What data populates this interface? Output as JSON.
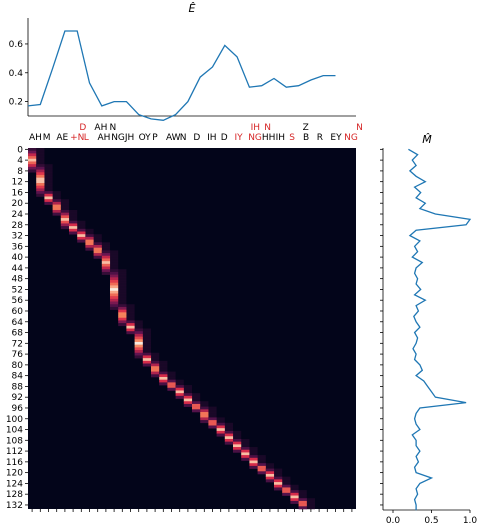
{
  "figure": {
    "top_title": "Ê",
    "right_title": "M̂"
  },
  "colors": {
    "line": "#1f77b4",
    "phoneme_black": "#000000",
    "phoneme_red": "#d62728",
    "heat_low": "#03051a",
    "heat_high": "#faebdd"
  },
  "chart_data": [
    {
      "type": "line",
      "title": "Ê",
      "xlim": [
        0,
        40
      ],
      "ylim": [
        0.1,
        0.78
      ],
      "y_ticks": [
        0.2,
        0.4,
        0.6
      ],
      "y_tick_labels": [
        "0.2",
        "0.4",
        "0.6"
      ],
      "x": [
        0,
        1.5,
        3,
        4.5,
        6,
        7.5,
        9,
        10.5,
        12,
        13.5,
        15,
        16.5,
        18,
        19.5,
        21,
        22.5,
        24,
        25.5,
        27,
        28.5,
        30,
        31.5,
        33,
        34.5,
        36,
        37.5
      ],
      "values": [
        0.17,
        0.18,
        0.43,
        0.69,
        0.69,
        0.33,
        0.17,
        0.2,
        0.2,
        0.11,
        0.08,
        0.07,
        0.11,
        0.2,
        0.37,
        0.44,
        0.59,
        0.51,
        0.3,
        0.31,
        0.36,
        0.3,
        0.31,
        0.35,
        0.38,
        0.38
      ]
    },
    {
      "type": "heatmap",
      "x_phonemes_top": [
        {
          "label": "AH",
          "color": "black"
        },
        {
          "label": "M",
          "color": "black"
        },
        {
          "label": "AE",
          "color": "black"
        },
        {
          "label": "+N",
          "color": "red"
        },
        {
          "label": "L",
          "color": "red"
        },
        {
          "label": "AH",
          "color": "black"
        },
        {
          "label": "NG",
          "color": "black"
        },
        {
          "label": "JH",
          "color": "black"
        },
        {
          "label": "OY",
          "color": "black"
        },
        {
          "label": "P",
          "color": "black"
        },
        {
          "label": "AW",
          "color": "black"
        },
        {
          "label": "N",
          "color": "black"
        },
        {
          "label": "D",
          "color": "black"
        },
        {
          "label": "IH",
          "color": "black"
        },
        {
          "label": "D",
          "color": "black"
        },
        {
          "label": "IY",
          "color": "red"
        },
        {
          "label": "NG",
          "color": "red"
        },
        {
          "label": "HH",
          "color": "black"
        },
        {
          "label": "IH",
          "color": "black"
        },
        {
          "label": "S",
          "color": "red"
        },
        {
          "label": "B",
          "color": "black"
        },
        {
          "label": "R",
          "color": "black"
        },
        {
          "label": "EY",
          "color": "black"
        },
        {
          "label": "NG",
          "color": "red"
        }
      ],
      "x_phonemes_bottom": [
        {
          "label": "D",
          "color": "red"
        },
        {
          "label": "AH",
          "color": "black"
        },
        {
          "label": "N",
          "color": "black"
        },
        {
          "label": "IH",
          "color": "red"
        },
        {
          "label": "N",
          "color": "red"
        },
        {
          "label": "Z",
          "color": "black"
        },
        {
          "label": "N",
          "color": "red"
        }
      ],
      "y_ticks": [
        0,
        4,
        8,
        12,
        16,
        20,
        24,
        28,
        32,
        36,
        40,
        44,
        48,
        52,
        56,
        60,
        64,
        68,
        72,
        76,
        80,
        84,
        88,
        92,
        96,
        100,
        104,
        108,
        112,
        116,
        120,
        124,
        128,
        132
      ],
      "y_tick_labels": [
        "0",
        "4",
        "8",
        "12",
        "16",
        "20",
        "24",
        "28",
        "32",
        "36",
        "40",
        "44",
        "48",
        "52",
        "56",
        "60",
        "64",
        "68",
        "72",
        "76",
        "80",
        "84",
        "88",
        "92",
        "96",
        "100",
        "104",
        "108",
        "112",
        "116",
        "120",
        "124",
        "128",
        "132"
      ],
      "n_rows": 134,
      "n_cols": 40,
      "alignment_path": [
        {
          "col": 0,
          "start": 0,
          "end": 8
        },
        {
          "col": 1,
          "start": 6,
          "end": 17
        },
        {
          "col": 2,
          "start": 16,
          "end": 20
        },
        {
          "col": 3,
          "start": 19,
          "end": 24
        },
        {
          "col": 4,
          "start": 23,
          "end": 29
        },
        {
          "col": 5,
          "start": 27,
          "end": 31
        },
        {
          "col": 6,
          "start": 30,
          "end": 34
        },
        {
          "col": 7,
          "start": 32,
          "end": 37
        },
        {
          "col": 8,
          "start": 35,
          "end": 40
        },
        {
          "col": 9,
          "start": 38,
          "end": 46
        },
        {
          "col": 10,
          "start": 45,
          "end": 59
        },
        {
          "col": 11,
          "start": 58,
          "end": 65
        },
        {
          "col": 12,
          "start": 64,
          "end": 68
        },
        {
          "col": 13,
          "start": 67,
          "end": 77
        },
        {
          "col": 14,
          "start": 76,
          "end": 80
        },
        {
          "col": 15,
          "start": 79,
          "end": 84
        },
        {
          "col": 16,
          "start": 83,
          "end": 87
        },
        {
          "col": 17,
          "start": 86,
          "end": 89
        },
        {
          "col": 18,
          "start": 88,
          "end": 92
        },
        {
          "col": 19,
          "start": 91,
          "end": 95
        },
        {
          "col": 20,
          "start": 94,
          "end": 97
        },
        {
          "col": 21,
          "start": 96,
          "end": 101
        },
        {
          "col": 22,
          "start": 100,
          "end": 103
        },
        {
          "col": 23,
          "start": 102,
          "end": 106
        },
        {
          "col": 24,
          "start": 105,
          "end": 109
        },
        {
          "col": 25,
          "start": 108,
          "end": 112
        },
        {
          "col": 26,
          "start": 111,
          "end": 115
        },
        {
          "col": 27,
          "start": 114,
          "end": 118
        },
        {
          "col": 28,
          "start": 117,
          "end": 120
        },
        {
          "col": 29,
          "start": 119,
          "end": 123
        },
        {
          "col": 30,
          "start": 122,
          "end": 126
        },
        {
          "col": 31,
          "start": 125,
          "end": 128
        },
        {
          "col": 32,
          "start": 127,
          "end": 131
        },
        {
          "col": 33,
          "start": 130,
          "end": 133
        }
      ]
    },
    {
      "type": "line",
      "title": "M̂",
      "xlim": [
        0,
        1.0
      ],
      "x_ticks": [
        0.0,
        0.5,
        1.0
      ],
      "x_tick_labels": [
        "0.0",
        "0.5",
        "1.0"
      ],
      "orientation": "vertical",
      "y_rows": [
        0,
        2,
        4,
        6,
        8,
        10,
        12,
        14,
        16,
        18,
        20,
        22,
        24,
        26,
        28,
        30,
        32,
        34,
        36,
        38,
        40,
        42,
        44,
        46,
        48,
        50,
        52,
        54,
        56,
        58,
        60,
        62,
        64,
        66,
        68,
        70,
        72,
        74,
        76,
        78,
        80,
        82,
        84,
        86,
        88,
        90,
        92,
        94,
        96,
        98,
        100,
        102,
        104,
        106,
        108,
        110,
        112,
        114,
        116,
        118,
        120,
        122,
        124,
        126,
        128,
        130,
        132,
        134
      ],
      "values": [
        0.2,
        0.32,
        0.25,
        0.3,
        0.22,
        0.3,
        0.42,
        0.28,
        0.36,
        0.3,
        0.42,
        0.35,
        0.55,
        1.0,
        0.95,
        0.3,
        0.22,
        0.35,
        0.28,
        0.32,
        0.25,
        0.38,
        0.3,
        0.28,
        0.32,
        0.3,
        0.36,
        0.28,
        0.42,
        0.3,
        0.33,
        0.27,
        0.3,
        0.35,
        0.28,
        0.32,
        0.3,
        0.26,
        0.3,
        0.28,
        0.35,
        0.38,
        0.3,
        0.4,
        0.45,
        0.5,
        0.55,
        0.95,
        0.35,
        0.3,
        0.28,
        0.3,
        0.35,
        0.25,
        0.3,
        0.3,
        0.35,
        0.3,
        0.33,
        0.28,
        0.3,
        0.5,
        0.35,
        0.3,
        0.32,
        0.28,
        0.3,
        0.3
      ]
    }
  ]
}
